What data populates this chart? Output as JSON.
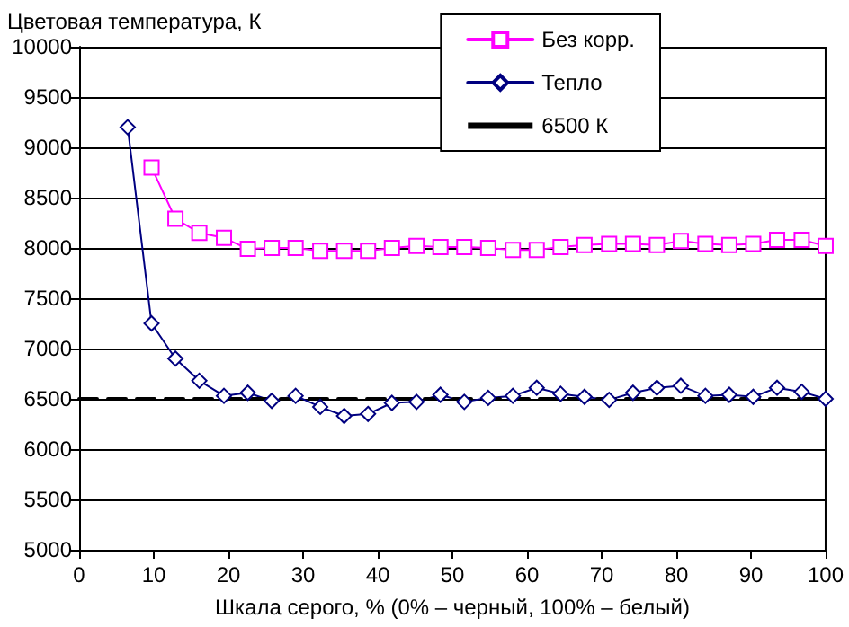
{
  "chart_data": {
    "type": "line",
    "ylabel": "Цветовая температура, К",
    "xlabel": "Шкала серого, % (0% – черный, 100% – белый)",
    "xlim": [
      0,
      100
    ],
    "xticks": [
      0,
      10,
      20,
      30,
      40,
      50,
      60,
      70,
      80,
      90,
      100
    ],
    "ylim": [
      5000,
      10000
    ],
    "yticks": [
      5000,
      5500,
      6000,
      6500,
      7000,
      7500,
      8000,
      8500,
      9000,
      9500,
      10000
    ],
    "grid": "y",
    "legend": "top right",
    "x": [
      6.5,
      9.7,
      12.9,
      16.1,
      19.4,
      22.6,
      25.8,
      29.0,
      32.3,
      35.5,
      38.7,
      41.9,
      45.2,
      48.4,
      51.6,
      54.8,
      58.1,
      61.3,
      64.5,
      67.7,
      71.0,
      74.2,
      77.4,
      80.6,
      83.9,
      87.1,
      90.3,
      93.5,
      96.8,
      100
    ],
    "series": [
      {
        "name": "Без корр.",
        "color": "#ff00ff",
        "marker": "square",
        "values": [
          null,
          8800,
          8290,
          8150,
          8100,
          7990,
          8000,
          8000,
          7970,
          7970,
          7970,
          8000,
          8020,
          8010,
          8010,
          8000,
          7980,
          7980,
          8010,
          8030,
          8040,
          8040,
          8030,
          8070,
          8040,
          8030,
          8040,
          8080,
          8080,
          8020
        ]
      },
      {
        "name": "Тепло",
        "color": "#000080",
        "marker": "diamond",
        "values": [
          9200,
          7250,
          6900,
          6680,
          6530,
          6560,
          6480,
          6530,
          6420,
          6330,
          6350,
          6460,
          6470,
          6540,
          6470,
          6510,
          6530,
          6610,
          6550,
          6520,
          6490,
          6560,
          6610,
          6630,
          6530,
          6540,
          6520,
          6610,
          6570,
          6500
        ]
      },
      {
        "name": "6500 К",
        "color": "#000000",
        "marker": "none",
        "line_style": "dashed",
        "x": [
          0,
          100
        ],
        "values": [
          6500,
          6500
        ]
      }
    ]
  }
}
